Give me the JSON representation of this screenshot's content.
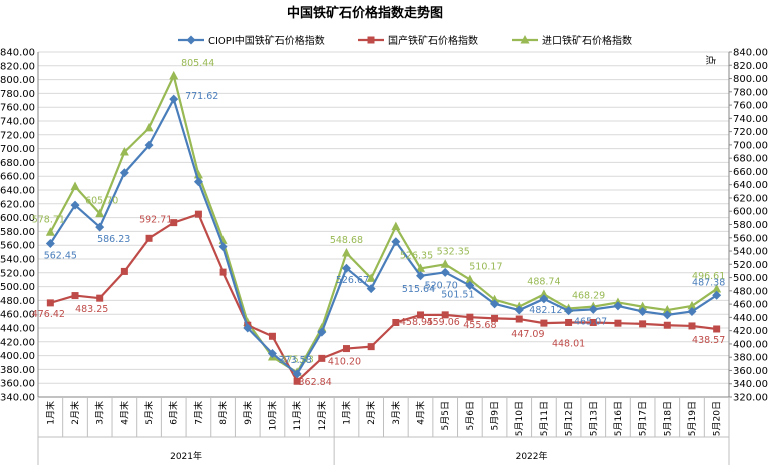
{
  "chart_data": {
    "type": "line",
    "title": "中国铁矿石价格指数走势图",
    "right_axis_unit": "点",
    "ylim": [
      340,
      840
    ],
    "ystep": 20,
    "right_ylim": [
      320,
      840
    ],
    "right_ystep": 20,
    "grid": true,
    "legend_position": "top",
    "categories": [
      "1月末",
      "2月末",
      "3月末",
      "4月末",
      "5月末",
      "6月末",
      "7月末",
      "8月末",
      "9月末",
      "10月末",
      "11月末",
      "12月末",
      "1月末",
      "2月末",
      "3月末",
      "4月末",
      "5月5日",
      "5月6日",
      "5月9日",
      "5月10日",
      "5月11日",
      "5月12日",
      "5月13日",
      "5月16日",
      "5月17日",
      "5月18日",
      "5月19日",
      "5月20日"
    ],
    "year_groups": [
      {
        "label": "2021年",
        "start": 0,
        "end": 11
      },
      {
        "label": "2022年",
        "start": 12,
        "end": 27
      }
    ],
    "series": [
      {
        "name": "CIOPI中国铁矿石价格指数",
        "color": "#4A7EBB",
        "marker": "diamond",
        "values": [
          562.45,
          618,
          586.23,
          665,
          705,
          771.62,
          652,
          558,
          440,
          403,
          373.58,
          434,
          526.67,
          497,
          565,
          515.64,
          520.7,
          501.51,
          475,
          466,
          482.12,
          465.07,
          467,
          472,
          464,
          459,
          464,
          487.38
        ]
      },
      {
        "name": "国产铁矿石价格指数",
        "color": "#BE4B48",
        "marker": "square",
        "values": [
          476.42,
          487,
          483.25,
          522,
          570,
          592.71,
          605,
          521,
          444,
          428,
          362.84,
          396,
          410.2,
          413,
          448,
          458.95,
          459.06,
          455.68,
          454,
          453,
          447.09,
          448.01,
          448,
          447,
          446,
          444,
          443,
          438.57
        ]
      },
      {
        "name": "进口铁矿石价格指数",
        "color": "#98B954",
        "marker": "triangle",
        "values": [
          578.71,
          645,
          605.7,
          695,
          730,
          805.44,
          662,
          567,
          448,
          398,
          375.63,
          440,
          548.68,
          512,
          587,
          526.35,
          532.35,
          510.17,
          481,
          471,
          488.74,
          468.29,
          471,
          477,
          471,
          466,
          472,
          496.61
        ]
      }
    ],
    "data_labels": [
      {
        "series": 2,
        "index": 0,
        "text": "578.71"
      },
      {
        "series": 2,
        "index": 2,
        "text": "605.70"
      },
      {
        "series": 2,
        "index": 5,
        "text": "805.44"
      },
      {
        "series": 2,
        "index": 10,
        "text": "375.63"
      },
      {
        "series": 2,
        "index": 12,
        "text": "548.68"
      },
      {
        "series": 2,
        "index": 15,
        "text": "526.35"
      },
      {
        "series": 2,
        "index": 16,
        "text": "532.35"
      },
      {
        "series": 2,
        "index": 17,
        "text": "510.17"
      },
      {
        "series": 2,
        "index": 20,
        "text": "488.74"
      },
      {
        "series": 2,
        "index": 21,
        "text": "468.29"
      },
      {
        "series": 2,
        "index": 27,
        "text": "496.61"
      },
      {
        "series": 0,
        "index": 0,
        "text": "562.45"
      },
      {
        "series": 0,
        "index": 2,
        "text": "586.23"
      },
      {
        "series": 0,
        "index": 5,
        "text": "771.62"
      },
      {
        "series": 0,
        "index": 10,
        "text": "373.58"
      },
      {
        "series": 0,
        "index": 12,
        "text": "526.67"
      },
      {
        "series": 0,
        "index": 15,
        "text": "515.64"
      },
      {
        "series": 0,
        "index": 16,
        "text": "520.70"
      },
      {
        "series": 0,
        "index": 17,
        "text": "501.51"
      },
      {
        "series": 0,
        "index": 20,
        "text": "482.12"
      },
      {
        "series": 0,
        "index": 21,
        "text": "465.07"
      },
      {
        "series": 0,
        "index": 27,
        "text": "487.38"
      },
      {
        "series": 1,
        "index": 0,
        "text": "476.42"
      },
      {
        "series": 1,
        "index": 2,
        "text": "483.25"
      },
      {
        "series": 1,
        "index": 5,
        "text": "592.71"
      },
      {
        "series": 1,
        "index": 10,
        "text": "362.84"
      },
      {
        "series": 1,
        "index": 12,
        "text": "410.20"
      },
      {
        "series": 1,
        "index": 15,
        "text": "458.95"
      },
      {
        "series": 1,
        "index": 16,
        "text": "459.06"
      },
      {
        "series": 1,
        "index": 17,
        "text": "455.68"
      },
      {
        "series": 1,
        "index": 20,
        "text": "447.09"
      },
      {
        "series": 1,
        "index": 21,
        "text": "448.01"
      },
      {
        "series": 1,
        "index": 27,
        "text": "438.57"
      }
    ]
  }
}
